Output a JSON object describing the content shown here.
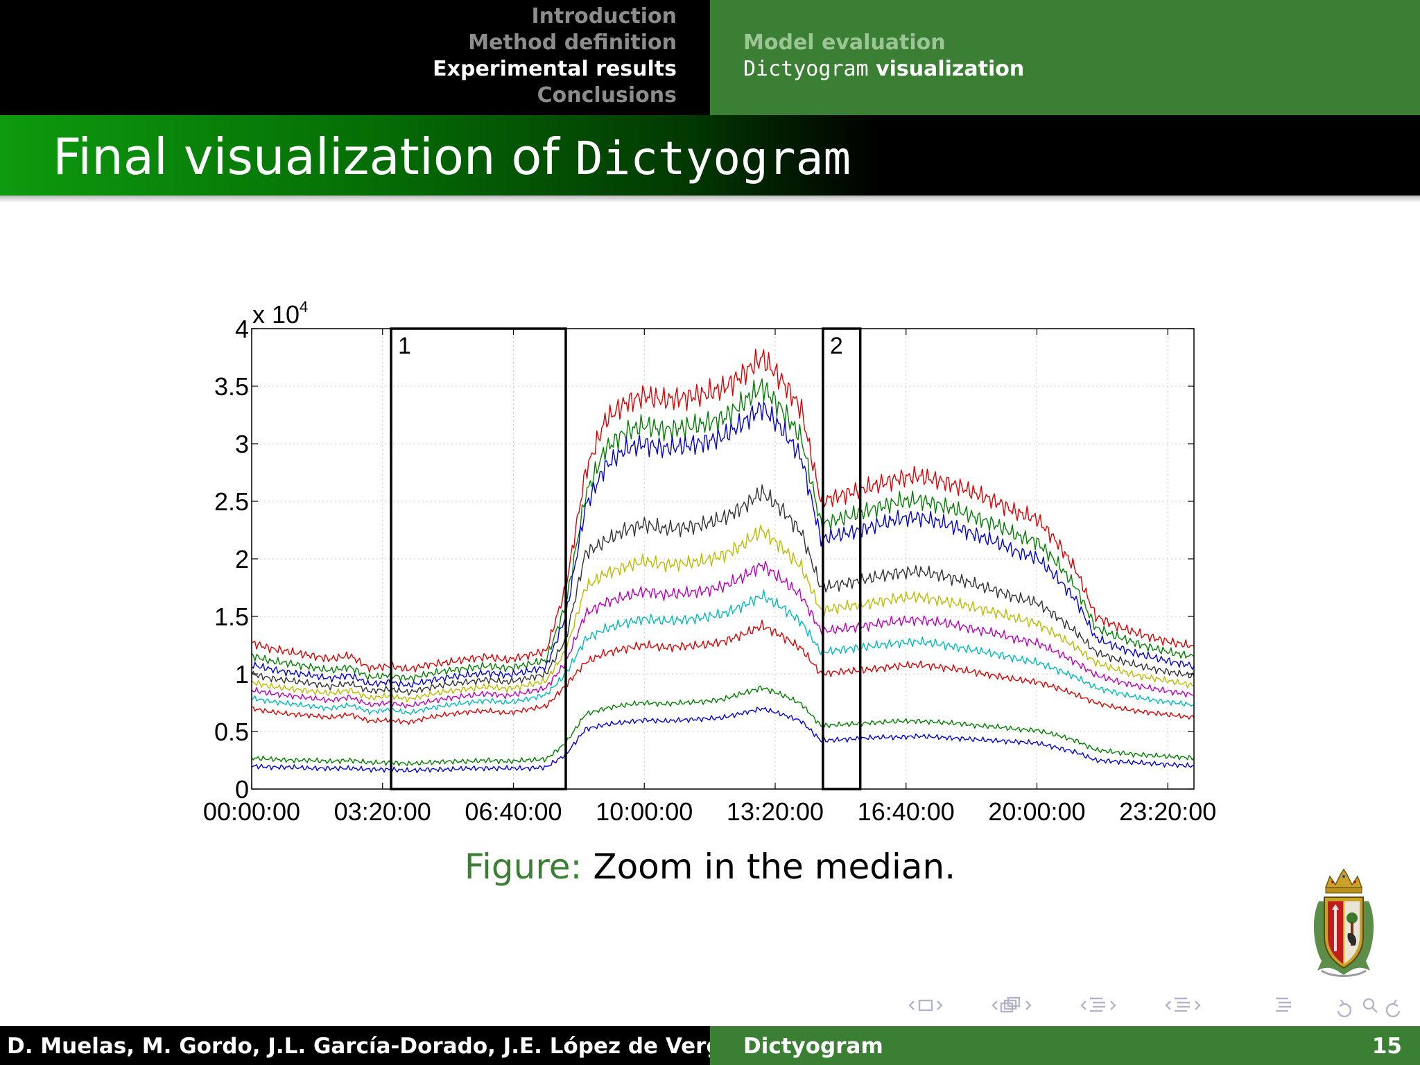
{
  "header": {
    "sections": [
      {
        "label": "Introduction",
        "active": false
      },
      {
        "label": "Method definition",
        "active": false
      },
      {
        "label": "Experimental results",
        "active": true
      },
      {
        "label": "Conclusions",
        "active": false
      }
    ],
    "subsections": [
      {
        "parts": [
          {
            "text": "Model evaluation",
            "mono": false
          }
        ],
        "active": false
      },
      {
        "parts": [
          {
            "text": "Dictyogram",
            "mono": true
          },
          {
            "text": " visualization",
            "mono": false
          }
        ],
        "active": true
      }
    ]
  },
  "slide_title": {
    "prefix": "Final visualization of ",
    "code": "Dictyogram"
  },
  "caption": {
    "label": "Figure:",
    "text": "Zoom in the median."
  },
  "footer": {
    "authors": "D. Muelas, M. Gordo, J.L. García-Dorado, J.E. López de Vergara",
    "short_title": "Dictyogram",
    "page": "15"
  },
  "nav_icons": [
    "frame-prev-icon",
    "frame-icon",
    "frame-next-icon",
    "subsection-prev-icon",
    "subsection-icon",
    "subsection-next-icon",
    "section-prev-icon",
    "section-icon",
    "section-next-icon",
    "subsec-alt-prev-icon",
    "subsec-alt-icon",
    "subsec-alt-next-icon",
    "outline-icon",
    "undo-icon",
    "search-icon",
    "redo-icon"
  ],
  "colors": {
    "header_green": "#3b7f35",
    "title_green": "#0e9a0e",
    "caption_green": "#3b7f35"
  },
  "chart_data": {
    "type": "line",
    "title": "",
    "xlabel": "",
    "ylabel": "",
    "x_ticks": [
      "00:00:00",
      "03:20:00",
      "06:40:00",
      "10:00:00",
      "13:20:00",
      "16:40:00",
      "20:00:00",
      "23:20:00"
    ],
    "y_ticks": [
      "0",
      "0.5",
      "1",
      "1.5",
      "2",
      "2.5",
      "3",
      "3.5",
      "4"
    ],
    "y_exponent_label": "x 10",
    "y_exponent_power": "4",
    "xlim_hours": [
      0,
      24
    ],
    "ylim": [
      0,
      40000
    ],
    "grid": true,
    "x_hours": [
      0,
      0.5,
      1,
      1.5,
      2,
      2.5,
      3,
      3.5,
      4,
      4.5,
      5,
      5.5,
      6,
      6.5,
      7,
      7.5,
      8,
      8.5,
      9,
      9.5,
      10,
      10.5,
      11,
      11.5,
      12,
      12.5,
      13,
      13.5,
      14,
      14.5,
      15,
      15.5,
      16,
      16.5,
      17,
      17.5,
      18,
      18.5,
      19,
      19.5,
      20,
      20.5,
      21,
      21.5,
      22,
      22.5,
      23,
      23.5,
      24
    ],
    "series": [
      {
        "color": "#e00000",
        "values": [
          12700,
          12200,
          11900,
          11600,
          11300,
          11600,
          10500,
          10700,
          10400,
          10800,
          11000,
          11300,
          11500,
          11200,
          11600,
          12000,
          17500,
          27500,
          32000,
          33500,
          34200,
          33800,
          34000,
          34300,
          34800,
          36000,
          37500,
          35500,
          33000,
          25000,
          25500,
          26000,
          26500,
          27000,
          27200,
          26800,
          26300,
          25600,
          24900,
          24000,
          23500,
          21500,
          19000,
          15000,
          14200,
          13600,
          13100,
          12700,
          12400
        ]
      },
      {
        "color": "#007f00",
        "values": [
          11600,
          11100,
          10900,
          10600,
          10300,
          10600,
          9700,
          9900,
          9600,
          10000,
          10300,
          10500,
          10700,
          10500,
          10800,
          11200,
          16000,
          25500,
          29500,
          31000,
          31600,
          31200,
          31400,
          31700,
          32200,
          33500,
          35000,
          33000,
          30500,
          23000,
          23500,
          24000,
          24500,
          25000,
          25100,
          24700,
          24200,
          23500,
          22900,
          22000,
          21500,
          19700,
          17500,
          14000,
          13300,
          12700,
          12200,
          11800,
          11500
        ]
      },
      {
        "color": "#0000dd",
        "values": [
          10800,
          10400,
          10100,
          9900,
          9600,
          9900,
          9100,
          9300,
          9000,
          9400,
          9700,
          9900,
          10100,
          9900,
          10200,
          10600,
          15000,
          24500,
          28000,
          29500,
          30000,
          29600,
          29800,
          30100,
          30600,
          31800,
          33200,
          31300,
          28800,
          21700,
          22100,
          22500,
          23000,
          23500,
          23600,
          23200,
          22700,
          22000,
          21400,
          20600,
          20100,
          18400,
          16400,
          13100,
          12400,
          11800,
          11400,
          11000,
          10700
        ]
      },
      {
        "color": "#333333",
        "values": [
          10000,
          9600,
          9400,
          9200,
          8900,
          9200,
          8500,
          8700,
          8400,
          8800,
          9100,
          9300,
          9500,
          9300,
          9600,
          10000,
          13000,
          20500,
          21500,
          22500,
          23000,
          22600,
          22700,
          23000,
          23500,
          24500,
          25800,
          24300,
          22300,
          17500,
          17800,
          18100,
          18500,
          18800,
          18900,
          18600,
          18200,
          17700,
          17200,
          16600,
          16200,
          15000,
          13600,
          11900,
          11300,
          10800,
          10400,
          10100,
          9800
        ]
      },
      {
        "color": "#bbbb00",
        "values": [
          9300,
          8900,
          8700,
          8500,
          8300,
          8600,
          7900,
          8100,
          7800,
          8200,
          8500,
          8700,
          8900,
          8700,
          9000,
          9400,
          12000,
          17500,
          18700,
          19300,
          19800,
          19500,
          19600,
          19800,
          20300,
          21200,
          22500,
          21000,
          19300,
          15500,
          15800,
          16000,
          16300,
          16600,
          16700,
          16400,
          16100,
          15700,
          15300,
          14800,
          14400,
          13400,
          12300,
          11000,
          10400,
          9900,
          9600,
          9300,
          9000
        ]
      },
      {
        "color": "#bb00bb",
        "values": [
          8600,
          8300,
          8100,
          7900,
          7700,
          8000,
          7300,
          7500,
          7200,
          7600,
          7900,
          8100,
          8300,
          8100,
          8400,
          8800,
          11000,
          15200,
          16200,
          16700,
          17200,
          16900,
          17000,
          17200,
          17600,
          18400,
          19500,
          18200,
          16800,
          13700,
          13900,
          14100,
          14400,
          14600,
          14700,
          14500,
          14200,
          13800,
          13500,
          13000,
          12700,
          11900,
          11000,
          9900,
          9400,
          9000,
          8700,
          8400,
          8200
        ]
      },
      {
        "color": "#00bbbb",
        "values": [
          7900,
          7600,
          7400,
          7200,
          7000,
          7300,
          6700,
          6900,
          6600,
          7000,
          7300,
          7500,
          7700,
          7500,
          7800,
          8200,
          10000,
          13000,
          13900,
          14400,
          14800,
          14600,
          14700,
          14900,
          15200,
          15900,
          16800,
          15800,
          14500,
          11900,
          12100,
          12300,
          12500,
          12700,
          12800,
          12600,
          12300,
          12000,
          11700,
          11300,
          11000,
          10400,
          9700,
          8800,
          8400,
          8000,
          7700,
          7500,
          7300
        ]
      },
      {
        "color": "#e00000",
        "values": [
          7000,
          6700,
          6500,
          6400,
          6200,
          6500,
          5900,
          6000,
          5800,
          6200,
          6500,
          6700,
          6800,
          6600,
          6900,
          7200,
          9000,
          11000,
          11800,
          12200,
          12500,
          12300,
          12400,
          12500,
          12800,
          13400,
          14200,
          13300,
          12200,
          10000,
          10200,
          10300,
          10500,
          10700,
          10800,
          10600,
          10400,
          10100,
          9800,
          9500,
          9300,
          8800,
          8200,
          7500,
          7100,
          6800,
          6600,
          6400,
          6200
        ]
      },
      {
        "color": "#007f00",
        "values": [
          2700,
          2600,
          2500,
          2500,
          2400,
          2500,
          2300,
          2300,
          2200,
          2300,
          2400,
          2400,
          2500,
          2400,
          2500,
          2600,
          4000,
          6500,
          7000,
          7300,
          7500,
          7400,
          7500,
          7600,
          7800,
          8300,
          8800,
          8200,
          7400,
          5500,
          5600,
          5700,
          5800,
          5900,
          5900,
          5800,
          5700,
          5500,
          5400,
          5200,
          5100,
          4700,
          4200,
          3400,
          3200,
          3000,
          2900,
          2800,
          2700
        ]
      },
      {
        "color": "#0000dd",
        "values": [
          2000,
          1900,
          1900,
          1800,
          1800,
          1800,
          1700,
          1700,
          1600,
          1700,
          1700,
          1800,
          1800,
          1800,
          1800,
          1900,
          3000,
          5200,
          5600,
          5800,
          6000,
          5900,
          6000,
          6100,
          6200,
          6600,
          7000,
          6500,
          5900,
          4200,
          4300,
          4400,
          4500,
          4500,
          4600,
          4500,
          4400,
          4300,
          4200,
          4100,
          4000,
          3600,
          3200,
          2500,
          2400,
          2300,
          2200,
          2100,
          2000
        ]
      }
    ],
    "annotations": [
      {
        "label": "1",
        "x_start_hours": 3.55,
        "x_end_hours": 8.0
      },
      {
        "label": "2",
        "x_start_hours": 14.55,
        "x_end_hours": 15.5
      }
    ]
  }
}
